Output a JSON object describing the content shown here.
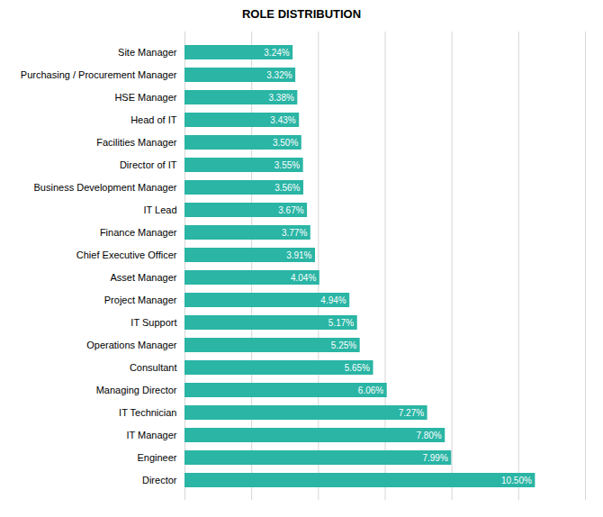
{
  "chart_data": {
    "type": "bar",
    "orientation": "horizontal",
    "title": "ROLE DISTRIBUTION",
    "categories": [
      "Site Manager",
      "Purchasing / Procurement Manager",
      "HSE Manager",
      "Head of IT",
      "Facilities Manager",
      "Director of IT",
      "Business Development Manager",
      "IT Lead",
      "Finance Manager",
      "Chief Executive Officer",
      "Asset Manager",
      "Project Manager",
      "IT Support",
      "Operations Manager",
      "Consultant",
      "Managing Director",
      "IT Technician",
      "IT Manager",
      "Engineer",
      "Director"
    ],
    "values": [
      3.24,
      3.32,
      3.38,
      3.43,
      3.5,
      3.55,
      3.56,
      3.67,
      3.77,
      3.91,
      4.04,
      4.94,
      5.17,
      5.25,
      5.65,
      6.06,
      7.27,
      7.8,
      7.99,
      10.5
    ],
    "value_labels": [
      "3.24%",
      "3.32%",
      "3.38%",
      "3.43%",
      "3.50%",
      "3.55%",
      "3.56%",
      "3.67%",
      "3.77%",
      "3.91%",
      "4.04%",
      "4.94%",
      "5.17%",
      "5.25%",
      "5.65%",
      "6.06%",
      "7.27%",
      "7.80%",
      "7.99%",
      "10.50%"
    ],
    "data_labels": true,
    "color": "#2ab5a5",
    "xlim": [
      0,
      12
    ],
    "xticks": [
      0,
      2,
      4,
      6,
      8,
      10,
      12
    ],
    "grid": true,
    "tick_labels": "y"
  }
}
